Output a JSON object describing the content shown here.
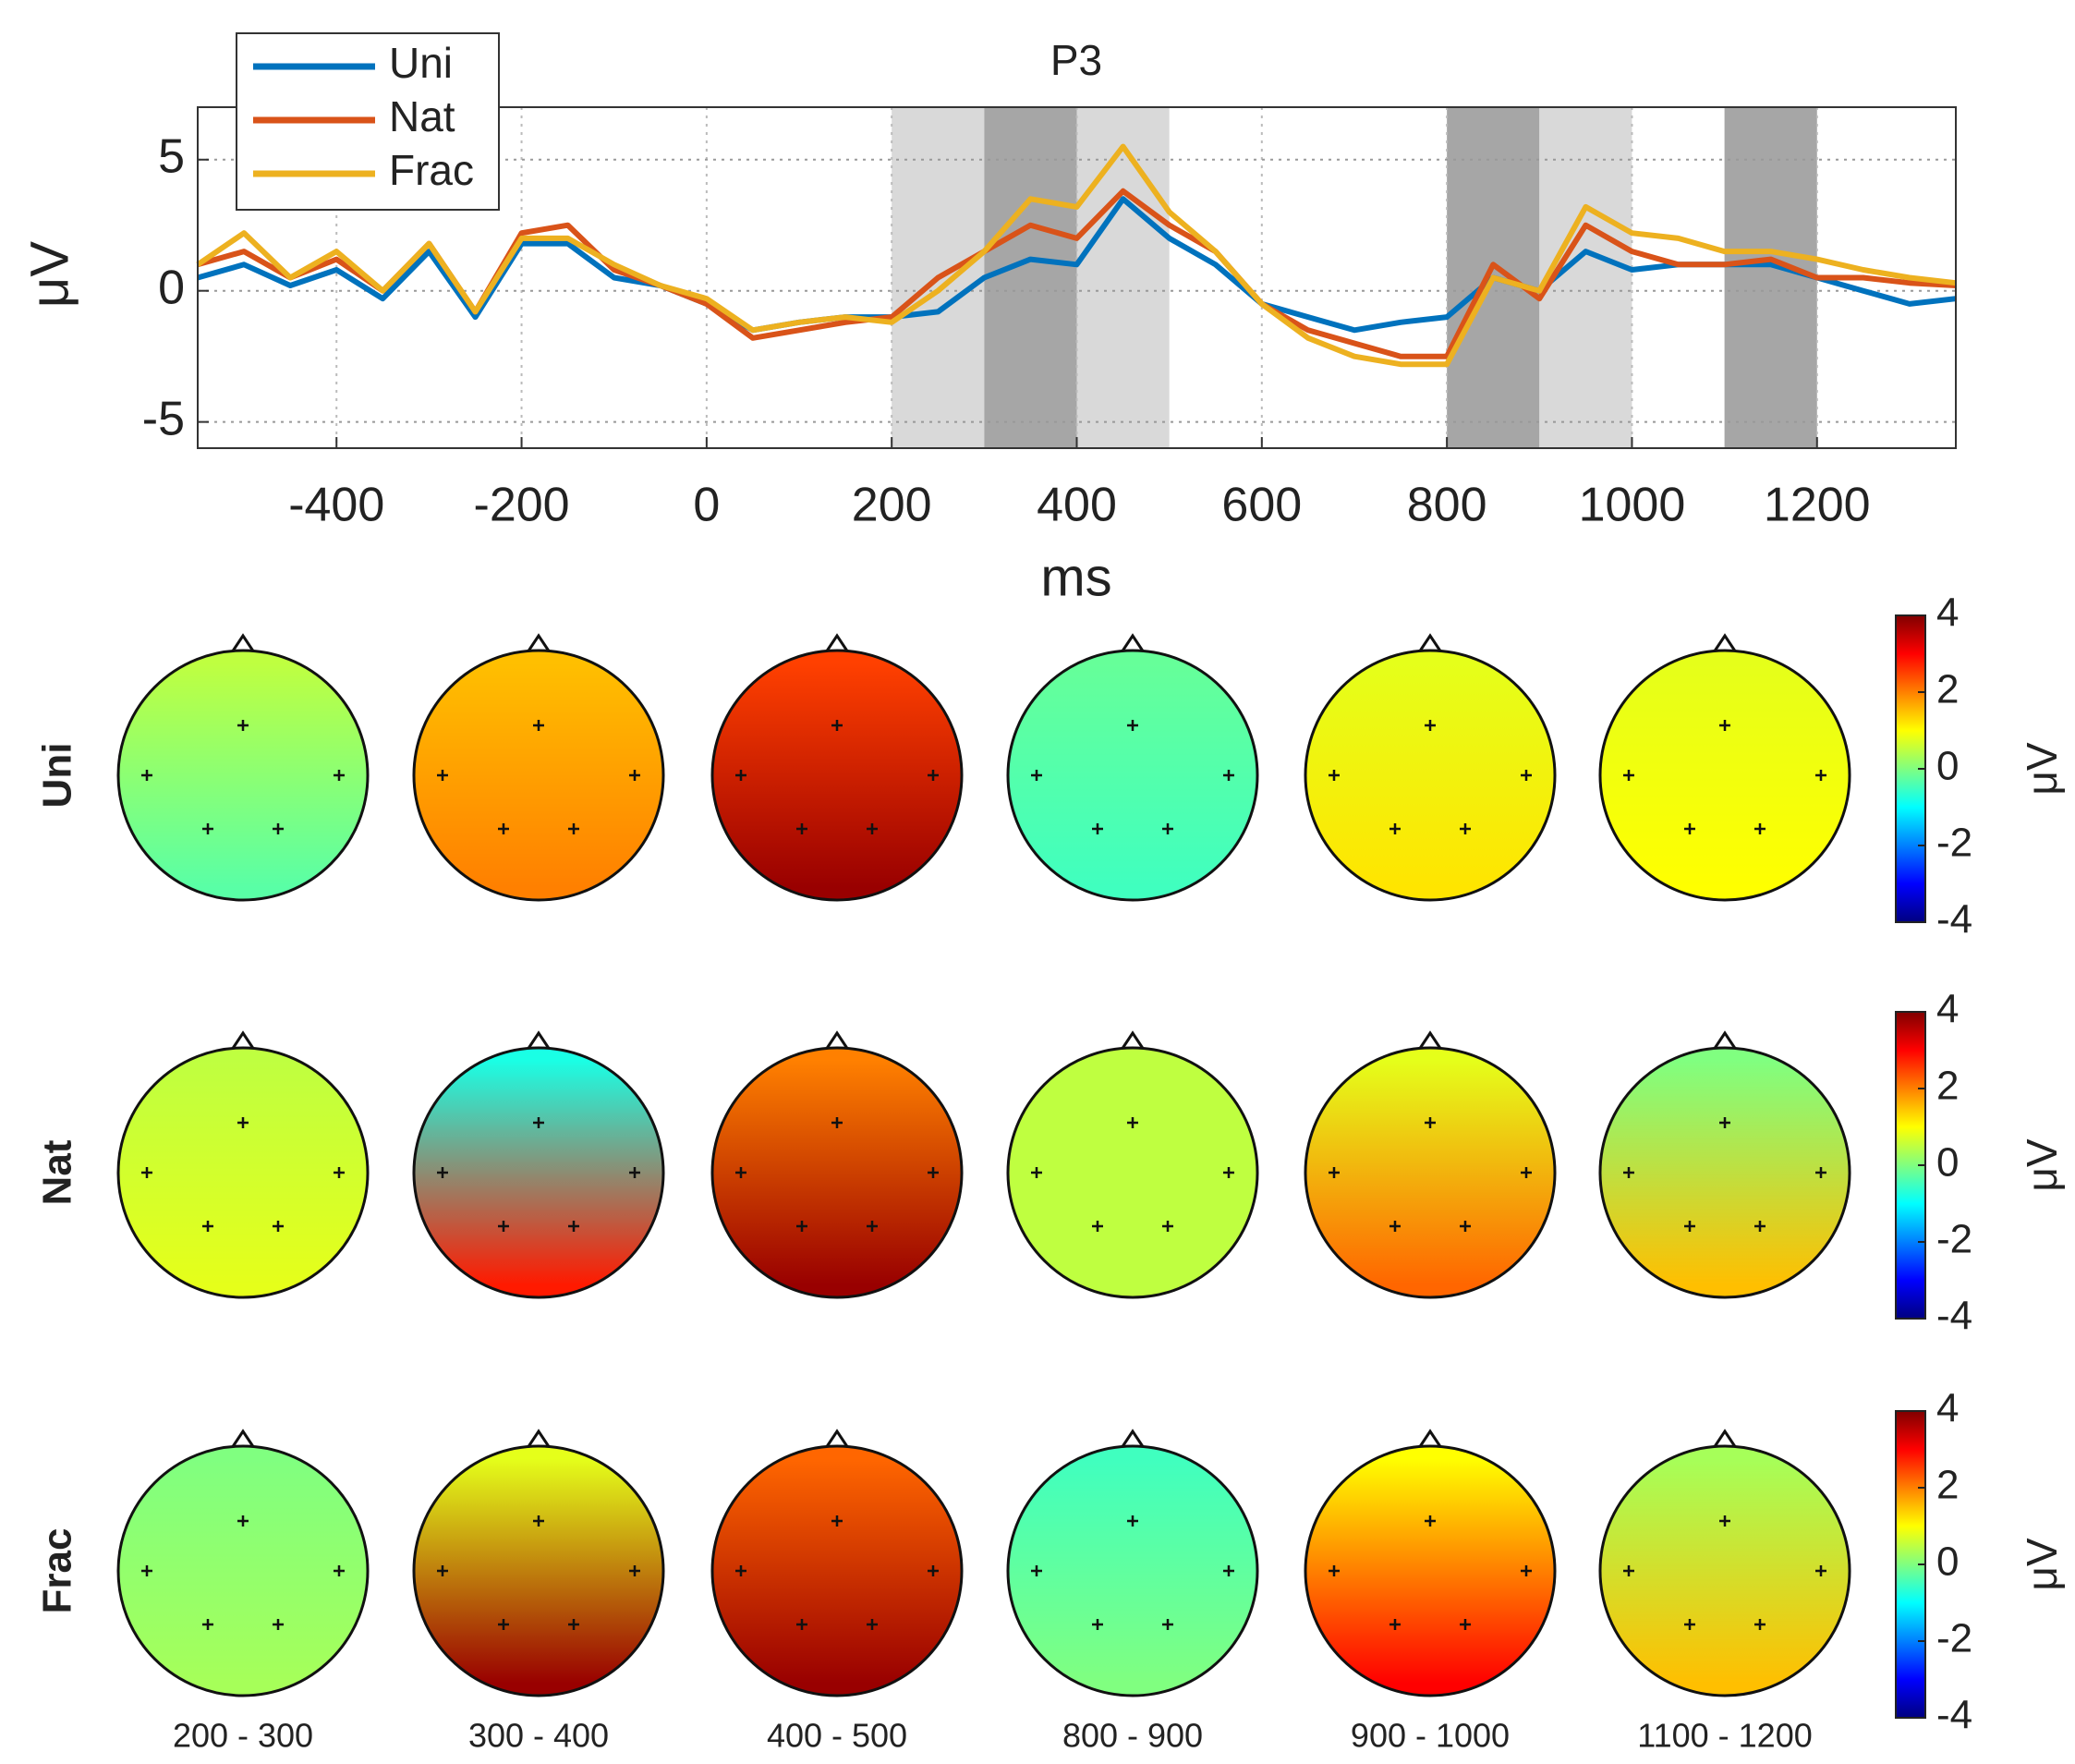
{
  "chart_data": [
    {
      "type": "line",
      "title": "P3",
      "xlabel": "ms",
      "ylabel": "μV",
      "x": [
        -550,
        -500,
        -450,
        -400,
        -350,
        -300,
        -250,
        -200,
        -150,
        -100,
        -50,
        0,
        50,
        100,
        150,
        200,
        250,
        300,
        350,
        400,
        450,
        500,
        550,
        600,
        650,
        700,
        750,
        800,
        850,
        900,
        950,
        1000,
        1050,
        1100,
        1150,
        1200,
        1250,
        1300,
        1350
      ],
      "series": [
        {
          "name": "Uni",
          "color": "#0072bd",
          "values": [
            0.5,
            1.0,
            0.2,
            0.8,
            -0.3,
            1.5,
            -1.0,
            1.8,
            1.8,
            0.5,
            0.2,
            -0.5,
            -1.5,
            -1.2,
            -1.0,
            -1.0,
            -0.8,
            0.5,
            1.2,
            1.0,
            3.5,
            2.0,
            1.0,
            -0.5,
            -1.0,
            -1.5,
            -1.2,
            -1.0,
            0.5,
            0.0,
            1.5,
            0.8,
            1.0,
            1.0,
            1.0,
            0.5,
            0.0,
            -0.5,
            -0.3
          ]
        },
        {
          "name": "Nat",
          "color": "#d95319",
          "values": [
            1.0,
            1.5,
            0.5,
            1.2,
            0.0,
            1.8,
            -0.8,
            2.2,
            2.5,
            0.8,
            0.2,
            -0.5,
            -1.8,
            -1.5,
            -1.2,
            -1.0,
            0.5,
            1.5,
            2.5,
            2.0,
            3.8,
            2.5,
            1.5,
            -0.5,
            -1.5,
            -2.0,
            -2.5,
            -2.5,
            1.0,
            -0.3,
            2.5,
            1.5,
            1.0,
            1.0,
            1.2,
            0.5,
            0.5,
            0.3,
            0.2
          ]
        },
        {
          "name": "Frac",
          "color": "#edb120",
          "values": [
            1.0,
            2.2,
            0.5,
            1.5,
            0.0,
            1.8,
            -0.8,
            2.0,
            2.0,
            1.0,
            0.2,
            -0.3,
            -1.5,
            -1.2,
            -1.0,
            -1.2,
            0.0,
            1.5,
            3.5,
            3.2,
            5.5,
            3.0,
            1.5,
            -0.5,
            -1.8,
            -2.5,
            -2.8,
            -2.8,
            0.5,
            0.0,
            3.2,
            2.2,
            2.0,
            1.5,
            1.5,
            1.2,
            0.8,
            0.5,
            0.3
          ]
        }
      ],
      "xlim": [
        -550,
        1350
      ],
      "ylim": [
        -6,
        7
      ],
      "xticks": [
        -400,
        -200,
        0,
        200,
        400,
        600,
        800,
        1000,
        1200
      ],
      "yticks": [
        -5,
        0,
        5
      ],
      "grid": true,
      "legend": "top-left",
      "shaded": [
        {
          "start": 200,
          "end": 300,
          "color": "#d9d9d9"
        },
        {
          "start": 300,
          "end": 400,
          "color": "#a6a6a6"
        },
        {
          "start": 400,
          "end": 500,
          "color": "#d9d9d9"
        },
        {
          "start": 800,
          "end": 900,
          "color": "#a6a6a6"
        },
        {
          "start": 900,
          "end": 1000,
          "color": "#d9d9d9"
        },
        {
          "start": 1100,
          "end": 1200,
          "color": "#a6a6a6"
        }
      ]
    },
    {
      "type": "topomap",
      "windows": [
        "200 - 300",
        "300 - 400",
        "400 - 500",
        "800 - 900",
        "900 - 1000",
        "1100 - 1200"
      ],
      "colorbar": {
        "lim": [
          -4,
          4
        ],
        "ticks": [
          4,
          2,
          0,
          -2,
          -4
        ],
        "label": "μV"
      },
      "rows": [
        {
          "name": "Uni",
          "color": "#0072bd",
          "maps": [
            {
              "front": 0.5,
              "back": -0.3
            },
            {
              "front": 1.5,
              "back": 2.0
            },
            {
              "front": 2.5,
              "back": 3.8
            },
            {
              "front": -0.2,
              "back": -0.5
            },
            {
              "front": 0.8,
              "back": 1.2
            },
            {
              "front": 0.8,
              "back": 1.0
            }
          ]
        },
        {
          "name": "Nat",
          "color": "#d95319",
          "maps": [
            {
              "front": 0.5,
              "back": 0.8
            },
            {
              "front": -0.8,
              "back": 2.8
            },
            {
              "front": 2.0,
              "back": 3.8
            },
            {
              "front": 0.5,
              "back": 0.5
            },
            {
              "front": 0.8,
              "back": 2.2
            },
            {
              "front": 0.0,
              "back": 1.5
            }
          ]
        },
        {
          "name": "Frac",
          "color": "#edb120",
          "maps": [
            {
              "front": 0.0,
              "back": 0.3
            },
            {
              "front": 0.8,
              "back": 3.8
            },
            {
              "front": 2.2,
              "back": 3.8
            },
            {
              "front": -0.5,
              "back": 0.0
            },
            {
              "front": 1.0,
              "back": 3.0
            },
            {
              "front": 0.3,
              "back": 1.5
            }
          ]
        }
      ]
    }
  ]
}
